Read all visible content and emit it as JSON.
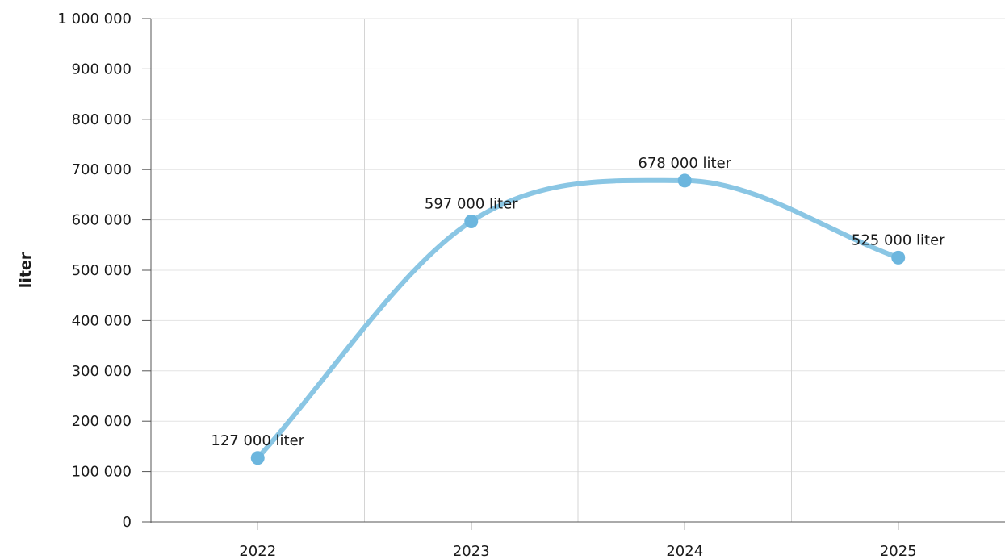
{
  "chart_data": {
    "type": "line",
    "categories": [
      "2022",
      "2023",
      "2024",
      "2025"
    ],
    "series": [
      {
        "values": [
          127000,
          597000,
          678000,
          525000
        ]
      }
    ],
    "data_labels": [
      "127 000 liter",
      "597 000 liter",
      "678 000 liter",
      "525 000 liter"
    ],
    "ylabel": "liter",
    "ylim": [
      0,
      1000000
    ],
    "yticks": [
      0,
      100000,
      200000,
      300000,
      400000,
      500000,
      600000,
      700000,
      800000,
      900000,
      1000000
    ],
    "ytick_labels": [
      "0",
      "100 000",
      "200 000",
      "300 000",
      "400 000",
      "500 000",
      "600 000",
      "700 000",
      "800 000",
      "900 000",
      "1 000 000"
    ],
    "grid": true,
    "legend": "none",
    "colors": {
      "line": "#8ac6e4",
      "marker": "#6cb6de"
    }
  }
}
